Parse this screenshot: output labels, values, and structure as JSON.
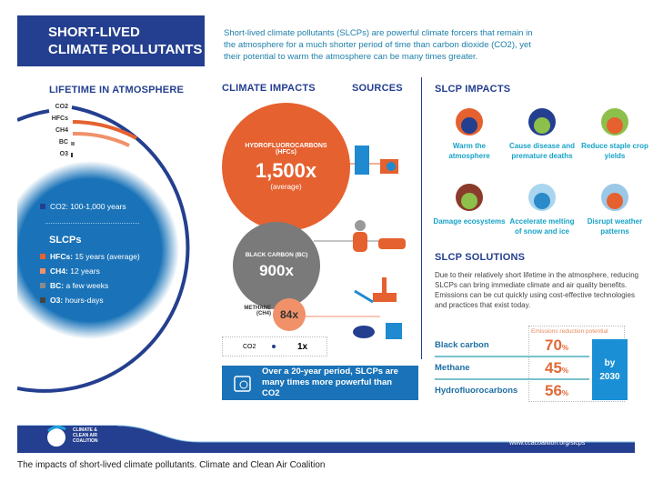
{
  "header": {
    "title_line1": "SHORT-LIVED",
    "title_line2": "CLIMATE POLLUTANTS",
    "intro": "Short-lived climate pollutants (SLCPs) are powerful climate forcers that remain in the atmosphere for a much shorter period of time than carbon dioxide (CO2), yet their potential to warm the atmosphere can be many times greater."
  },
  "lifetime": {
    "heading": "LIFETIME IN ATMOSPHERE",
    "arc_labels": [
      "CO2",
      "HFCs",
      "CH4",
      "BC",
      "O3"
    ],
    "co2": "CO2: 100-1,000 years",
    "slcps_heading": "SLCPs",
    "items": [
      {
        "name": "HFCs:",
        "value": "15 years (average)",
        "color": "#e5612f"
      },
      {
        "name": "CH4:",
        "value": "12 years",
        "color": "#f0916a"
      },
      {
        "name": "BC:",
        "value": "a few weeks",
        "color": "#8a8a8a"
      },
      {
        "name": "O3:",
        "value": "hours-days",
        "color": "#444444"
      }
    ]
  },
  "impacts": {
    "heading": "CLIMATE IMPACTS",
    "sources_heading": "SOURCES",
    "hfc": {
      "name": "HYDROFLUOROCARBONS",
      "abbr": "(HFCs)",
      "value": "1,500x",
      "note": "(average)"
    },
    "bc": {
      "name": "BLACK CARBON (BC)",
      "value": "900x"
    },
    "ch4": {
      "name": "METHANE",
      "abbr": "(CH4)",
      "value": "84x"
    },
    "co2": {
      "name": "CO2",
      "value": "1x"
    },
    "callout": "Over a 20-year period, SLCPs are many times more powerful than CO2"
  },
  "slcp_impacts": {
    "heading": "SLCP IMPACTS",
    "items": [
      {
        "label": "Warm the atmosphere",
        "icon": "warming-globe-icon"
      },
      {
        "label": "Cause disease and premature deaths",
        "icon": "skull-icon"
      },
      {
        "label": "Reduce staple crop yields",
        "icon": "crop-icon"
      },
      {
        "label": "Damage ecosystems",
        "icon": "trees-icon"
      },
      {
        "label": "Accelerate melting of snow and ice",
        "icon": "iceberg-icon"
      },
      {
        "label": "Disrupt weather patterns",
        "icon": "weather-icon"
      }
    ]
  },
  "solutions": {
    "heading": "SLCP SOLUTIONS",
    "text": "Due to their relatively short lifetime in the atmosphere, reducing SLCPs can bring immediate climate and air quality benefits. Emissions can be cut quickly using cost-effective technologies and practices that exist today.",
    "table_header": "Emissions reduction potential",
    "rows": [
      {
        "name": "Black carbon",
        "value": "70",
        "unit": "%"
      },
      {
        "name": "Methane",
        "value": "45",
        "unit": "%"
      },
      {
        "name": "Hydrofluorocarbons",
        "value": "56",
        "unit": "%"
      }
    ],
    "by": "by",
    "year": "2030"
  },
  "footer": {
    "logo": "CLIMATE & CLEAN AIR COALITION",
    "url": "www.ccacoalition.org/slcps"
  },
  "caption": "The impacts of short-lived climate pollutants. Climate and Clean Air Coalition",
  "colors": {
    "navy": "#243f8f",
    "orange": "#e5612f",
    "teal": "#17a3c7",
    "blue": "#1a73b8"
  }
}
